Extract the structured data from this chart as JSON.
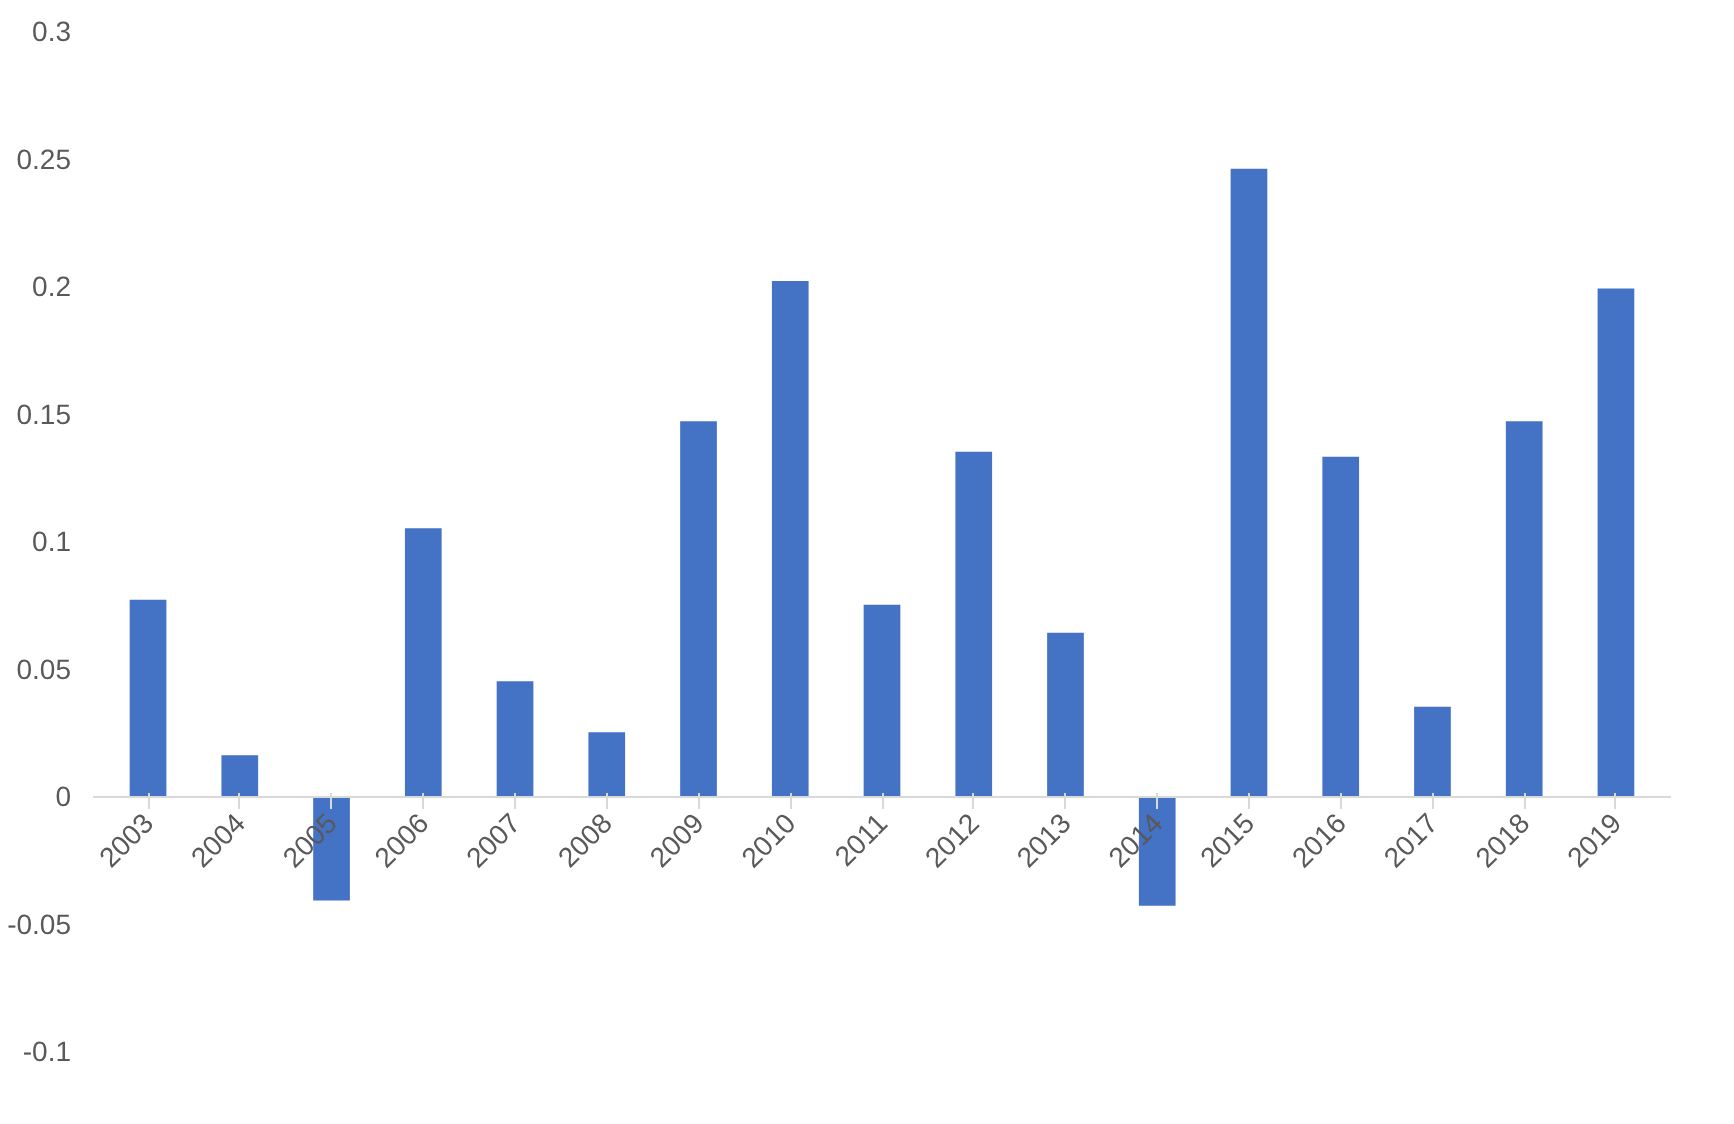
{
  "chart_data": {
    "type": "bar",
    "categories": [
      "2003",
      "2004",
      "2005",
      "2006",
      "2007",
      "2008",
      "2009",
      "2010",
      "2011",
      "2012",
      "2013",
      "2014",
      "2015",
      "2016",
      "2017",
      "2018",
      "2019"
    ],
    "values": [
      0.077,
      0.016,
      -0.041,
      0.105,
      0.045,
      0.025,
      0.147,
      0.202,
      0.075,
      0.135,
      0.064,
      -0.043,
      0.246,
      0.133,
      0.035,
      0.147,
      0.199
    ],
    "color": "#4472c4",
    "ylim": [
      -0.1,
      0.3
    ],
    "yticks": [
      -0.1,
      -0.05,
      0,
      0.05,
      0.1,
      0.15,
      0.2,
      0.25,
      0.3
    ],
    "grid": false
  }
}
